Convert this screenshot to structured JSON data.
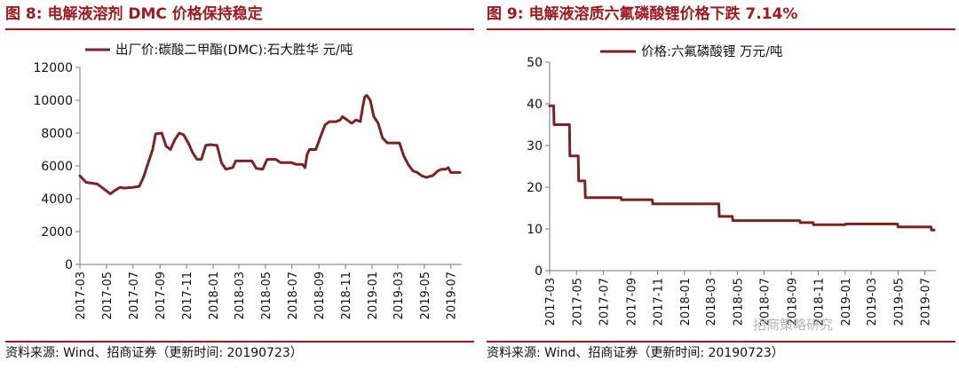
{
  "charts": [
    {
      "header": "图 8:  电解液溶剂 DMC 价格保持稳定",
      "source": "资料来源: Wind、招商证券（更新时间: 20190723）",
      "legend": "出厂价:碳酸二甲酯(DMC):石大胜华 元/吨",
      "line_color": "#7b2324",
      "y_ticks": [
        "0",
        "2000",
        "4000",
        "6000",
        "8000",
        "10000",
        "12000"
      ],
      "x_ticks": [
        "2017-03",
        "2017-05",
        "2017-07",
        "2017-09",
        "2017-11",
        "2018-01",
        "2018-03",
        "2018-05",
        "2018-07",
        "2018-09",
        "2018-11",
        "2019-01",
        "2019-03",
        "2019-05",
        "2019-07"
      ]
    },
    {
      "header": "图 9:  电解液溶质六氟磷酸锂价格下跌 7.14%",
      "source": "资料来源: Wind、招商证券（更新时间: 20190723）",
      "legend": "价格:六氟磷酸锂  万元/吨",
      "line_color": "#7b2324",
      "y_ticks": [
        "0",
        "10",
        "20",
        "30",
        "40",
        "50"
      ],
      "x_ticks": [
        "2017-03",
        "2017-05",
        "2017-07",
        "2017-09",
        "2017-11",
        "2018-01",
        "2018-03",
        "2018-05",
        "2018-07",
        "2018-09",
        "2018-11",
        "2019-01",
        "2019-03",
        "2019-05",
        "2019-07"
      ]
    }
  ],
  "watermark": "招商策略研究",
  "chart_data": [
    {
      "type": "line",
      "title": "电解液溶剂 DMC 价格保持稳定",
      "ylabel": "元/吨",
      "ylim": [
        0,
        12000
      ],
      "xlim": [
        "2017-03",
        "2019-07"
      ],
      "x_ticks": [
        "2017-03",
        "2017-05",
        "2017-07",
        "2017-09",
        "2017-11",
        "2018-01",
        "2018-03",
        "2018-05",
        "2018-07",
        "2018-09",
        "2018-11",
        "2019-01",
        "2019-03",
        "2019-05",
        "2019-07"
      ],
      "legend": "top-left",
      "grid": false,
      "series": [
        {
          "name": "出厂价:碳酸二甲酯(DMC):石大胜华",
          "points": [
            [
              "2017-03-01",
              5400
            ],
            [
              "2017-03-15",
              5000
            ],
            [
              "2017-04-10",
              4900
            ],
            [
              "2017-04-25",
              4600
            ],
            [
              "2017-05-10",
              4300
            ],
            [
              "2017-05-20",
              4500
            ],
            [
              "2017-06-01",
              4700
            ],
            [
              "2017-06-10",
              4650
            ],
            [
              "2017-07-01",
              4700
            ],
            [
              "2017-07-15",
              4750
            ],
            [
              "2017-07-25",
              5300
            ],
            [
              "2017-08-05",
              6200
            ],
            [
              "2017-08-15",
              7000
            ],
            [
              "2017-08-22",
              7950
            ],
            [
              "2017-09-05",
              8000
            ],
            [
              "2017-09-15",
              7200
            ],
            [
              "2017-09-25",
              7000
            ],
            [
              "2017-10-05",
              7600
            ],
            [
              "2017-10-15",
              8000
            ],
            [
              "2017-10-25",
              7900
            ],
            [
              "2017-11-05",
              7400
            ],
            [
              "2017-11-15",
              6800
            ],
            [
              "2017-11-25",
              6400
            ],
            [
              "2017-12-05",
              6400
            ],
            [
              "2017-12-15",
              7250
            ],
            [
              "2017-12-25",
              7300
            ],
            [
              "2018-01-10",
              7250
            ],
            [
              "2018-01-20",
              6200
            ],
            [
              "2018-01-30",
              5800
            ],
            [
              "2018-02-15",
              5900
            ],
            [
              "2018-02-22",
              6300
            ],
            [
              "2018-03-15",
              6300
            ],
            [
              "2018-03-31",
              6300
            ],
            [
              "2018-04-10",
              5850
            ],
            [
              "2018-04-25",
              5800
            ],
            [
              "2018-05-05",
              6400
            ],
            [
              "2018-05-25",
              6400
            ],
            [
              "2018-06-05",
              6200
            ],
            [
              "2018-06-30",
              6200
            ],
            [
              "2018-07-10",
              6100
            ],
            [
              "2018-07-25",
              6100
            ],
            [
              "2018-07-31",
              5900
            ],
            [
              "2018-08-05",
              6700
            ],
            [
              "2018-08-10",
              7000
            ],
            [
              "2018-08-25",
              7000
            ],
            [
              "2018-09-05",
              7800
            ],
            [
              "2018-09-15",
              8500
            ],
            [
              "2018-09-25",
              8700
            ],
            [
              "2018-10-10",
              8700
            ],
            [
              "2018-10-20",
              8800
            ],
            [
              "2018-10-25",
              9000
            ],
            [
              "2018-11-05",
              8800
            ],
            [
              "2018-11-15",
              8600
            ],
            [
              "2018-11-25",
              8800
            ],
            [
              "2018-12-05",
              8700
            ],
            [
              "2018-12-10",
              9500
            ],
            [
              "2018-12-15",
              10200
            ],
            [
              "2018-12-20",
              10300
            ],
            [
              "2018-12-28",
              10000
            ],
            [
              "2019-01-05",
              9000
            ],
            [
              "2019-01-15",
              8600
            ],
            [
              "2019-01-25",
              7700
            ],
            [
              "2019-02-05",
              7400
            ],
            [
              "2019-02-25",
              7400
            ],
            [
              "2019-03-05",
              7400
            ],
            [
              "2019-03-15",
              6600
            ],
            [
              "2019-03-25",
              6100
            ],
            [
              "2019-04-05",
              5700
            ],
            [
              "2019-04-15",
              5600
            ],
            [
              "2019-04-25",
              5400
            ],
            [
              "2019-05-05",
              5300
            ],
            [
              "2019-05-20",
              5400
            ],
            [
              "2019-06-01",
              5700
            ],
            [
              "2019-06-10",
              5800
            ],
            [
              "2019-06-20",
              5800
            ],
            [
              "2019-06-25",
              5900
            ],
            [
              "2019-07-01",
              5600
            ],
            [
              "2019-07-22",
              5600
            ]
          ]
        }
      ]
    },
    {
      "type": "line",
      "title": "电解液溶质六氟磷酸锂价格下跌 7.14%",
      "ylabel": "万元/吨",
      "ylim": [
        0,
        50
      ],
      "xlim": [
        "2017-03",
        "2019-07"
      ],
      "x_ticks": [
        "2017-03",
        "2017-05",
        "2017-07",
        "2017-09",
        "2017-11",
        "2018-01",
        "2018-03",
        "2018-05",
        "2018-07",
        "2018-09",
        "2018-11",
        "2019-01",
        "2019-03",
        "2019-05",
        "2019-07"
      ],
      "legend": "top-left",
      "grid": false,
      "series": [
        {
          "name": "价格:六氟磷酸锂",
          "points": [
            [
              "2017-03-01",
              39.5
            ],
            [
              "2017-03-10",
              39.5
            ],
            [
              "2017-03-11",
              35
            ],
            [
              "2017-04-15",
              35
            ],
            [
              "2017-04-16",
              27.5
            ],
            [
              "2017-05-05",
              27.5
            ],
            [
              "2017-05-06",
              21.5
            ],
            [
              "2017-05-20",
              21.5
            ],
            [
              "2017-05-21",
              17.5
            ],
            [
              "2017-08-10",
              17.5
            ],
            [
              "2017-08-11",
              17
            ],
            [
              "2017-10-20",
              17
            ],
            [
              "2017-10-21",
              16
            ],
            [
              "2018-03-20",
              16
            ],
            [
              "2018-03-21",
              13
            ],
            [
              "2018-04-20",
              13
            ],
            [
              "2018-04-21",
              12
            ],
            [
              "2018-09-20",
              12
            ],
            [
              "2018-09-21",
              11.5
            ],
            [
              "2018-10-20",
              11.5
            ],
            [
              "2018-10-21",
              11
            ],
            [
              "2019-01-01",
              11
            ],
            [
              "2019-01-02",
              11.2
            ],
            [
              "2019-04-30",
              11.2
            ],
            [
              "2019-05-01",
              10.5
            ],
            [
              "2019-07-15",
              10.5
            ],
            [
              "2019-07-16",
              9.75
            ],
            [
              "2019-07-22",
              9.75
            ]
          ]
        }
      ]
    }
  ]
}
